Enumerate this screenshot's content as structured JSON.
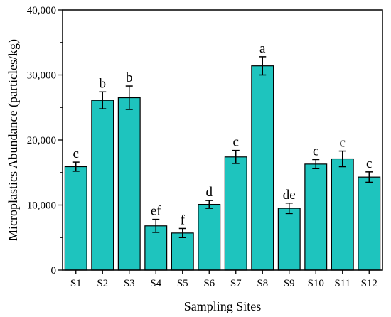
{
  "chart_data": {
    "type": "bar",
    "title": "",
    "xlabel": "Sampling Sites",
    "ylabel": "Microplastics Abundance (particles/kg)",
    "categories": [
      "S1",
      "S2",
      "S3",
      "S4",
      "S5",
      "S6",
      "S7",
      "S8",
      "S9",
      "S10",
      "S11",
      "S12"
    ],
    "values": [
      15900,
      26100,
      26500,
      6800,
      5700,
      10100,
      17400,
      31400,
      9500,
      16300,
      17100,
      14300
    ],
    "errors": [
      700,
      1300,
      1800,
      1000,
      700,
      600,
      1000,
      1400,
      800,
      700,
      1200,
      800
    ],
    "significance": [
      "c",
      "b",
      "b",
      "ef",
      "f",
      "d",
      "c",
      "a",
      "de",
      "c",
      "c",
      "c"
    ],
    "ylim": [
      0,
      40000
    ],
    "yticks": [
      0,
      10000,
      20000,
      30000,
      40000
    ],
    "ytick_labels": [
      "0",
      "10,000",
      "20,000",
      "30,000",
      "40,000"
    ],
    "grid": false,
    "bar_color": "#1ec4be",
    "bar_edge_color": "#000000"
  }
}
